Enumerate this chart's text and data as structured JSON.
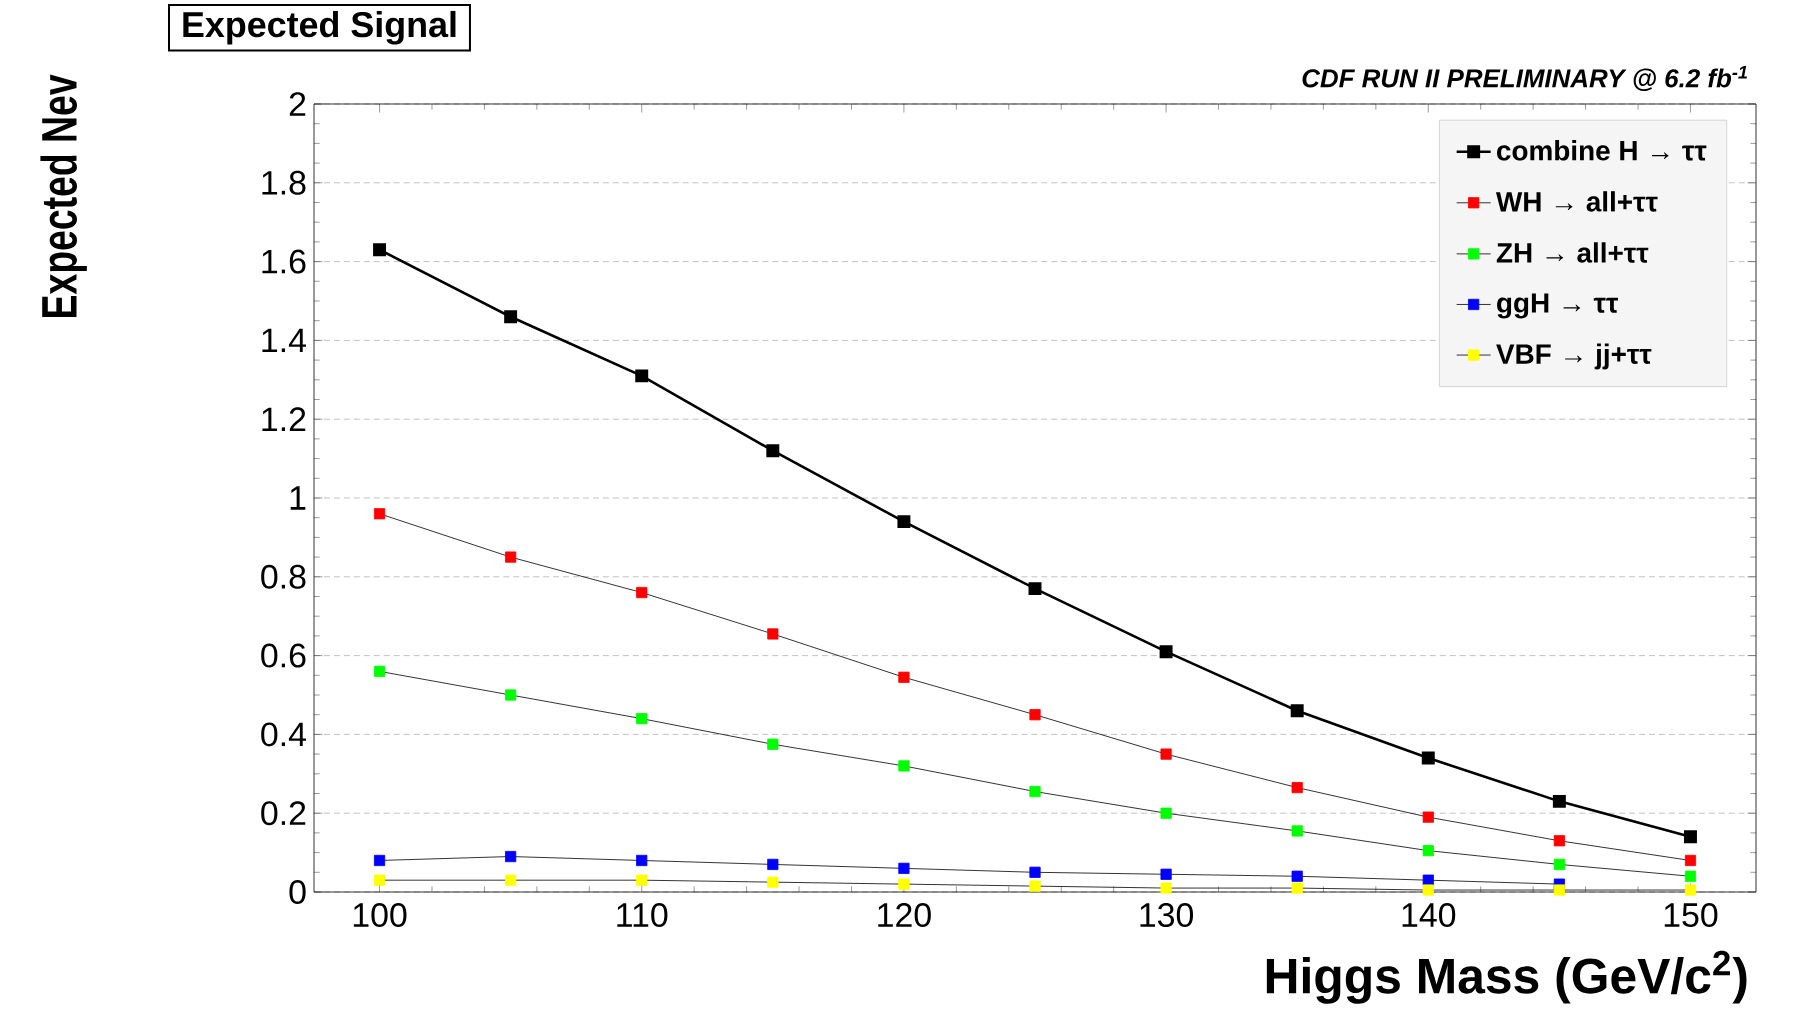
{
  "chart_data": {
    "type": "line",
    "title": "Expected Signal",
    "annotations": [
      "CDF RUN II PRELIMINARY @ 6.2 fb$^{-1}$"
    ],
    "xlabel": "Higgs Mass (GeV/c$^{2}$)",
    "ylabel": "Expected Nev",
    "x": [
      100,
      105,
      110,
      115,
      120,
      125,
      130,
      135,
      140,
      145,
      150
    ],
    "series": [
      {
        "name": "combine H → ττ",
        "color": "#000000",
        "values": [
          1.63,
          1.46,
          1.31,
          1.12,
          0.94,
          0.77,
          0.61,
          0.46,
          0.34,
          0.23,
          0.14
        ]
      },
      {
        "name": "WH → all+ττ",
        "color": "#ff0000",
        "values": [
          0.96,
          0.85,
          0.76,
          0.655,
          0.545,
          0.45,
          0.35,
          0.265,
          0.19,
          0.13,
          0.08
        ]
      },
      {
        "name": "ZH → all+ττ",
        "color": "#00ff00",
        "values": [
          0.56,
          0.5,
          0.44,
          0.375,
          0.32,
          0.255,
          0.2,
          0.155,
          0.105,
          0.07,
          0.04
        ]
      },
      {
        "name": "ggH → ττ",
        "color": "#0000ff",
        "values": [
          0.08,
          0.09,
          0.08,
          0.07,
          0.06,
          0.05,
          0.045,
          0.04,
          0.03,
          0.02,
          null
        ]
      },
      {
        "name": "VBF → jj+ττ",
        "color": "#ffff00",
        "values": [
          0.03,
          0.03,
          0.03,
          0.025,
          0.02,
          0.015,
          0.01,
          0.01,
          0.005,
          0.005,
          0.005
        ]
      }
    ],
    "xlim": [
      97.5,
      152.5
    ],
    "xticks": [
      100,
      110,
      120,
      130,
      140,
      150
    ],
    "ylim": [
      0,
      2
    ],
    "yticks": [
      0,
      0.2,
      0.4,
      0.6,
      0.8,
      1,
      1.2,
      1.4,
      1.6,
      1.8,
      2
    ],
    "grid": "y",
    "legend": "top right",
    "marker": "square",
    "line_style": "solid"
  }
}
